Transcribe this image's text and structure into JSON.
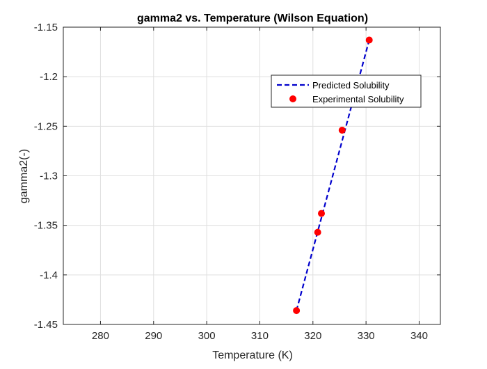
{
  "chart_data": {
    "type": "line",
    "title": "gamma2 vs. Temperature (Wilson Equation)",
    "xlabel": "Temperature (K)",
    "ylabel": "gamma2(-)",
    "xlim": [
      273,
      344
    ],
    "ylim": [
      -1.45,
      -1.15
    ],
    "xticks": [
      280,
      290,
      300,
      310,
      320,
      330,
      340
    ],
    "yticks": [
      -1.15,
      -1.2,
      -1.25,
      -1.3,
      -1.35,
      -1.4,
      -1.45
    ],
    "xtick_labels": [
      "280",
      "290",
      "300",
      "310",
      "320",
      "330",
      "340"
    ],
    "ytick_labels": [
      "-1.15",
      "-1.2",
      "-1.25",
      "-1.3",
      "-1.35",
      "-1.4",
      "-1.45"
    ],
    "grid": true,
    "legend_position": "top-right",
    "series": [
      {
        "name": "Predicted Solubility",
        "style": "dashed-line",
        "color": "#0000cc",
        "x": [
          316.9,
          330.6
        ],
        "y": [
          -1.436,
          -1.163
        ]
      },
      {
        "name": "Experimental Solubility",
        "style": "marker",
        "color": "#ff0000",
        "x": [
          316.9,
          320.9,
          321.6,
          325.5,
          330.6
        ],
        "y": [
          -1.436,
          -1.357,
          -1.338,
          -1.254,
          -1.163
        ]
      }
    ]
  }
}
